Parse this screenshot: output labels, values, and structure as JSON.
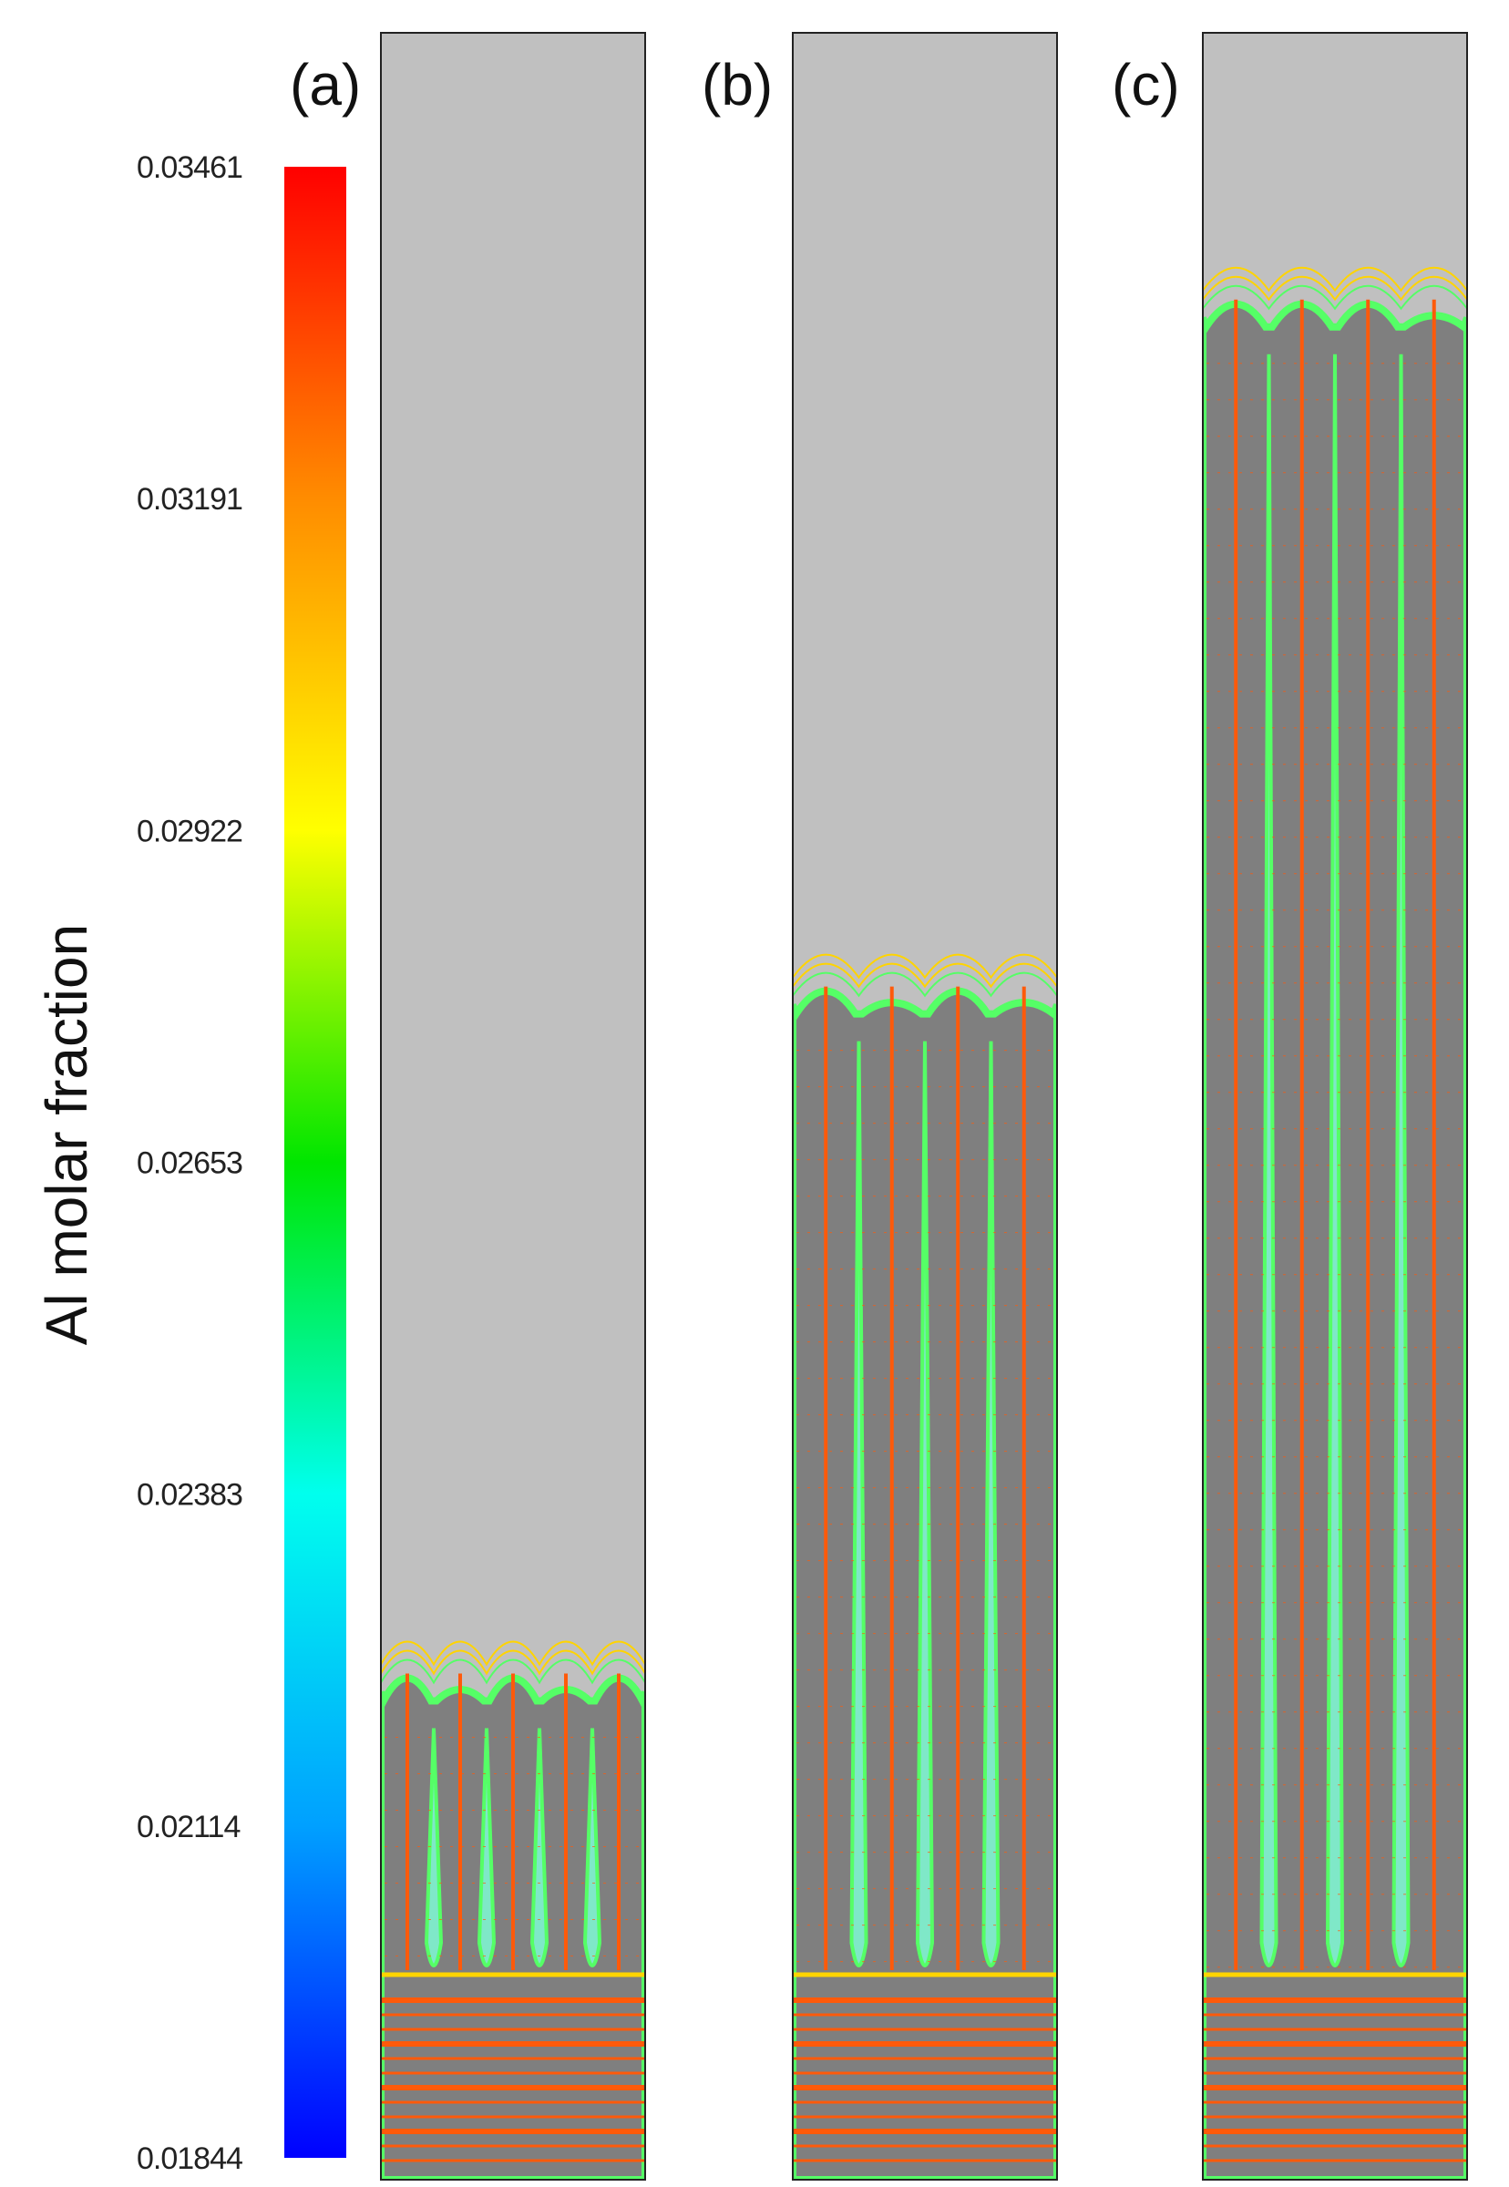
{
  "colorbar": {
    "title": "Al molar fraction",
    "min": 0.01844,
    "max": 0.03461,
    "tick_labels": [
      "0.03461",
      "0.03191",
      "0.02922",
      "0.02653",
      "0.02383",
      "0.02114",
      "0.01844"
    ],
    "gradient_colors": [
      "#ff0000",
      "#ff8c00",
      "#ffff00",
      "#00e600",
      "#00ffee",
      "#00a0ff",
      "#0000ff"
    ]
  },
  "colors": {
    "liquid": "#c0c0c0",
    "solid": "#7f7f7f",
    "boundary": "#ff5a0a",
    "front": "#ffd400",
    "interdendritic": "#55ff66"
  },
  "panels": [
    {
      "label": "(a)",
      "front_height": 0.24,
      "dendrites": 5
    },
    {
      "label": "(b)",
      "front_height": 0.56,
      "dendrites": 4
    },
    {
      "label": "(c)",
      "front_height": 0.88,
      "dendrites": 4
    }
  ]
}
